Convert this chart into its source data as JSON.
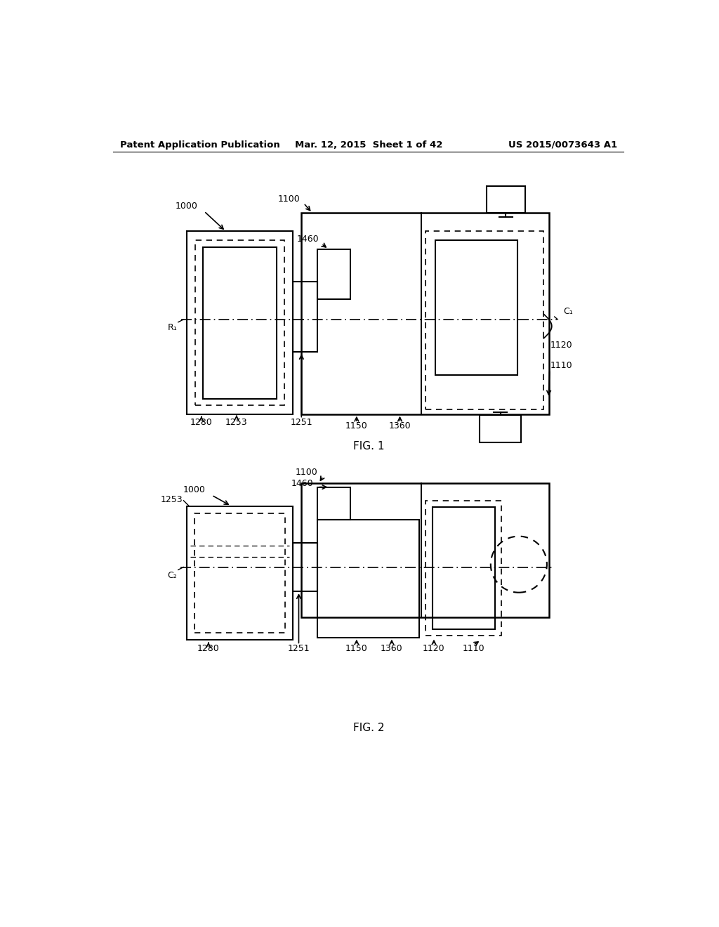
{
  "bg_color": "#ffffff",
  "header_left": "Patent Application Publication",
  "header_center": "Mar. 12, 2015  Sheet 1 of 42",
  "header_right": "US 2015/0073643 A1",
  "fig1_label": "FIG. 1",
  "fig2_label": "FIG. 2",
  "fig1": {
    "label_1000": "1000",
    "label_1100": "1100",
    "label_1460": "1460",
    "label_1280": "1280",
    "label_1253": "1253",
    "label_1251": "1251",
    "label_1150": "1150",
    "label_1360": "1360",
    "label_1120": "1120",
    "label_1110": "1110",
    "label_R1": "R₁",
    "label_C1": "C₁"
  },
  "fig2": {
    "label_1000": "1000",
    "label_1100": "1100",
    "label_1460": "1460",
    "label_1280": "1280",
    "label_1253": "1253",
    "label_1251": "1251",
    "label_1150": "1150",
    "label_1360": "1360",
    "label_1120": "1120",
    "label_1110": "1110",
    "label_C2": "C₂"
  }
}
